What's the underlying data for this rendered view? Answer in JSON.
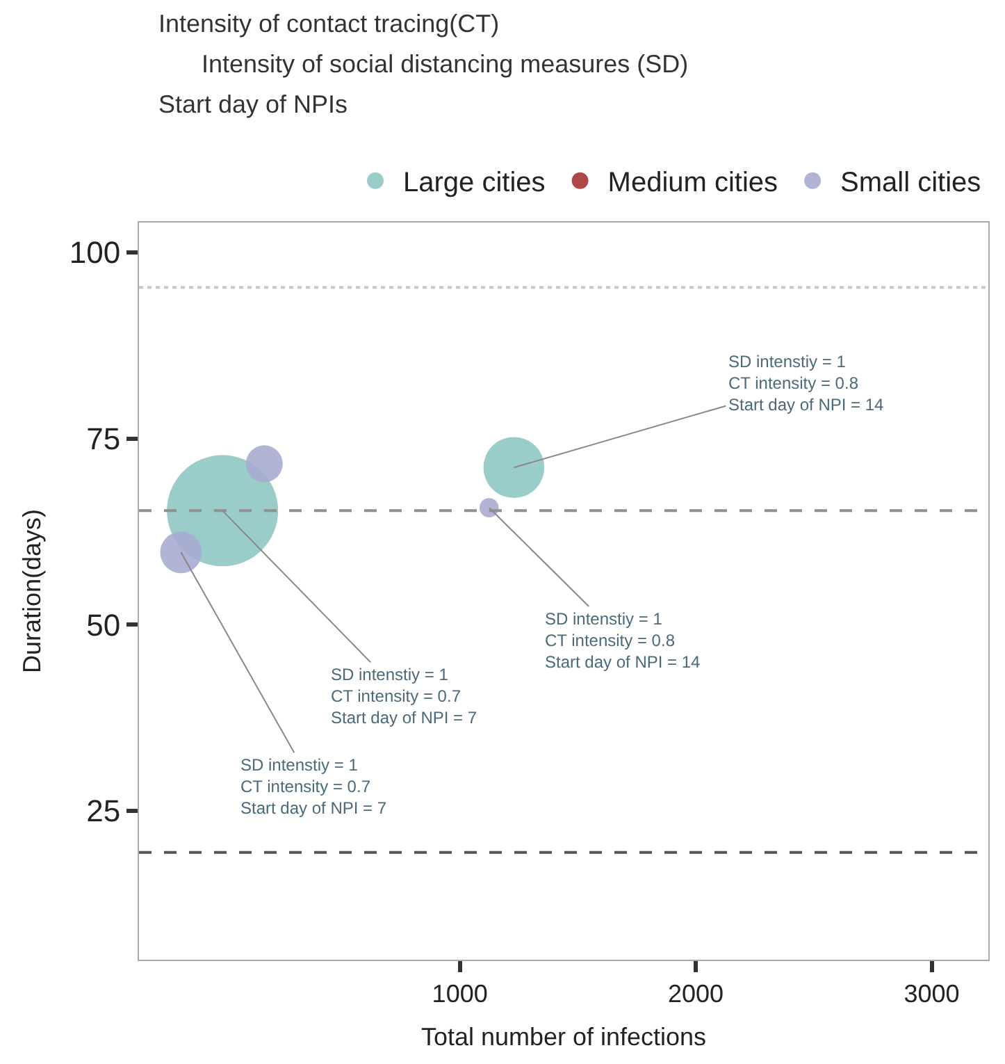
{
  "chart_data": {
    "type": "bubble",
    "xlabel": "Total number of infections",
    "ylabel": "Duration(days)",
    "xlim": [
      -360,
      3240
    ],
    "xticks": [
      1000,
      2000,
      3000
    ],
    "ylim": [
      5,
      104
    ],
    "yticks": [
      25,
      50,
      75,
      100
    ],
    "series": [
      {
        "name": "Large cities",
        "color": "#8fc7c4",
        "x": [
          -6,
          1229
        ],
        "values": [
          65.3,
          71.1
        ],
        "sizes": [
          1,
          0.3
        ]
      },
      {
        "name": "Medium cities",
        "color": "#b04848"
      },
      {
        "name": "Small cities",
        "color": "#a9acd0",
        "x": [
          171,
          -182,
          1124
        ],
        "values": [
          71.6,
          59.7,
          65.7
        ],
        "sizes": [
          0.11,
          0.14,
          0.03
        ]
      }
    ],
    "ref_lines": [
      {
        "axis": "y",
        "value": 95.3,
        "color": "#c8c8c8",
        "line_style": "dotted"
      },
      {
        "axis": "y",
        "value": 65.3,
        "color": "#909090",
        "line_style": "dashed"
      },
      {
        "axis": "y",
        "value": 19.4,
        "color": "#555555",
        "line_style": "dashed"
      }
    ],
    "annotations": [
      "Intensity of contact tracing(CT)",
      "Intensity of social distancing measures (SD)",
      "Start day of NPIs",
      {
        "text": "SD intenstiy = 1\nCT intensity = 0.7\nStart day of NPI = 7",
        "x": -6,
        "y": 65.3
      },
      {
        "text": "SD intenstiy = 1\nCT intensity = 0.7\nStart day of NPI = 7",
        "x": -182,
        "y": 59.7
      },
      {
        "text": "SD intenstiy = 1\nCT intensity = 0.8\nStart day of NPI = 14",
        "x": 1229,
        "y": 71.1
      },
      {
        "text": "SD intenstiy = 1\nCT intensity = 0.8\nStart day of NPI = 14",
        "x": 1124,
        "y": 65.7
      }
    ],
    "legend": "top",
    "marker": "circle"
  }
}
